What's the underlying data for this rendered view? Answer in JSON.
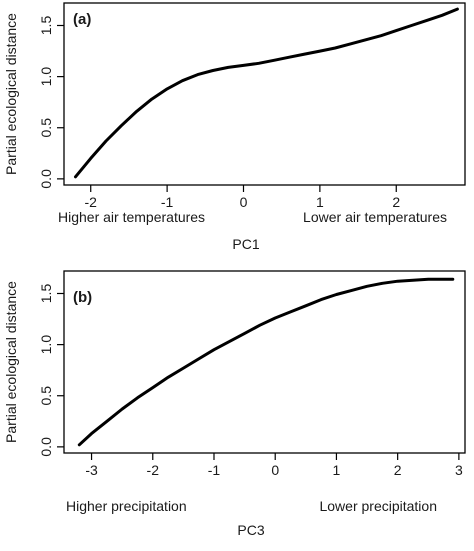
{
  "chart_data": [
    {
      "type": "line",
      "panel_label": "(a)",
      "xlabel": "PC1",
      "ylabel": "Partial ecological distance",
      "xlim": [
        -2.35,
        2.9
      ],
      "ylim": [
        -0.06,
        1.72
      ],
      "xticks": [
        -2,
        -1,
        0,
        1,
        2
      ],
      "yticks": [
        0.0,
        0.5,
        1.0,
        1.5
      ],
      "xtick_labels": [
        "-2",
        "-1",
        "0",
        "1",
        "2"
      ],
      "ytick_labels": [
        "0.0",
        "0.5",
        "1.0",
        "1.5"
      ],
      "annotations": {
        "left": "Higher air temperatures",
        "right": "Lower air temperatures"
      },
      "x": [
        -2.2,
        -2.0,
        -1.8,
        -1.6,
        -1.4,
        -1.2,
        -1.0,
        -0.8,
        -0.6,
        -0.4,
        -0.2,
        0.0,
        0.2,
        0.4,
        0.6,
        0.8,
        1.0,
        1.2,
        1.4,
        1.6,
        1.8,
        2.0,
        2.2,
        2.4,
        2.6,
        2.8
      ],
      "y": [
        0.02,
        0.2,
        0.37,
        0.52,
        0.66,
        0.78,
        0.88,
        0.96,
        1.02,
        1.06,
        1.09,
        1.11,
        1.13,
        1.16,
        1.19,
        1.22,
        1.25,
        1.28,
        1.32,
        1.36,
        1.4,
        1.45,
        1.5,
        1.55,
        1.6,
        1.66
      ]
    },
    {
      "type": "line",
      "panel_label": "(b)",
      "xlabel": "PC3",
      "ylabel": "Partial ecological distance",
      "xlim": [
        -3.45,
        3.1
      ],
      "ylim": [
        -0.06,
        1.72
      ],
      "xticks": [
        -3,
        -2,
        -1,
        0,
        1,
        2,
        3
      ],
      "yticks": [
        0.0,
        0.5,
        1.0,
        1.5
      ],
      "xtick_labels": [
        "-3",
        "-2",
        "-1",
        "0",
        "1",
        "2",
        "3"
      ],
      "ytick_labels": [
        "0.0",
        "0.5",
        "1.0",
        "1.5"
      ],
      "annotations": {
        "left": "Higher precipitation",
        "right": "Lower precipitation"
      },
      "x": [
        -3.2,
        -3.0,
        -2.75,
        -2.5,
        -2.25,
        -2.0,
        -1.75,
        -1.5,
        -1.25,
        -1.0,
        -0.75,
        -0.5,
        -0.25,
        0.0,
        0.25,
        0.5,
        0.75,
        1.0,
        1.25,
        1.5,
        1.75,
        2.0,
        2.25,
        2.5,
        2.75,
        2.9
      ],
      "y": [
        0.02,
        0.13,
        0.25,
        0.37,
        0.48,
        0.58,
        0.68,
        0.77,
        0.86,
        0.95,
        1.03,
        1.11,
        1.19,
        1.26,
        1.32,
        1.38,
        1.44,
        1.49,
        1.53,
        1.57,
        1.6,
        1.62,
        1.63,
        1.64,
        1.64,
        1.64
      ]
    }
  ]
}
